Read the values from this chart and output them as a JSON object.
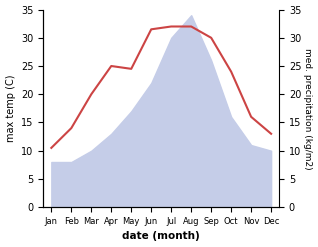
{
  "months": [
    "Jan",
    "Feb",
    "Mar",
    "Apr",
    "May",
    "Jun",
    "Jul",
    "Aug",
    "Sep",
    "Oct",
    "Nov",
    "Dec"
  ],
  "max_temp": [
    10.5,
    14,
    20,
    25,
    24.5,
    31.5,
    32,
    32,
    30,
    24,
    16,
    13
  ],
  "precipitation": [
    8,
    8,
    10,
    13,
    17,
    22,
    30,
    34,
    26,
    16,
    11,
    10
  ],
  "temp_color": "#cc4444",
  "precip_fill_color": "#c5cde8",
  "precip_edge_color": "#b0bad8",
  "ylim": [
    0,
    35
  ],
  "yticks": [
    0,
    5,
    10,
    15,
    20,
    25,
    30,
    35
  ],
  "xlabel": "date (month)",
  "ylabel_left": "max temp (C)",
  "ylabel_right": "med. precipitation (kg/m2)",
  "bg_color": "#ffffff"
}
